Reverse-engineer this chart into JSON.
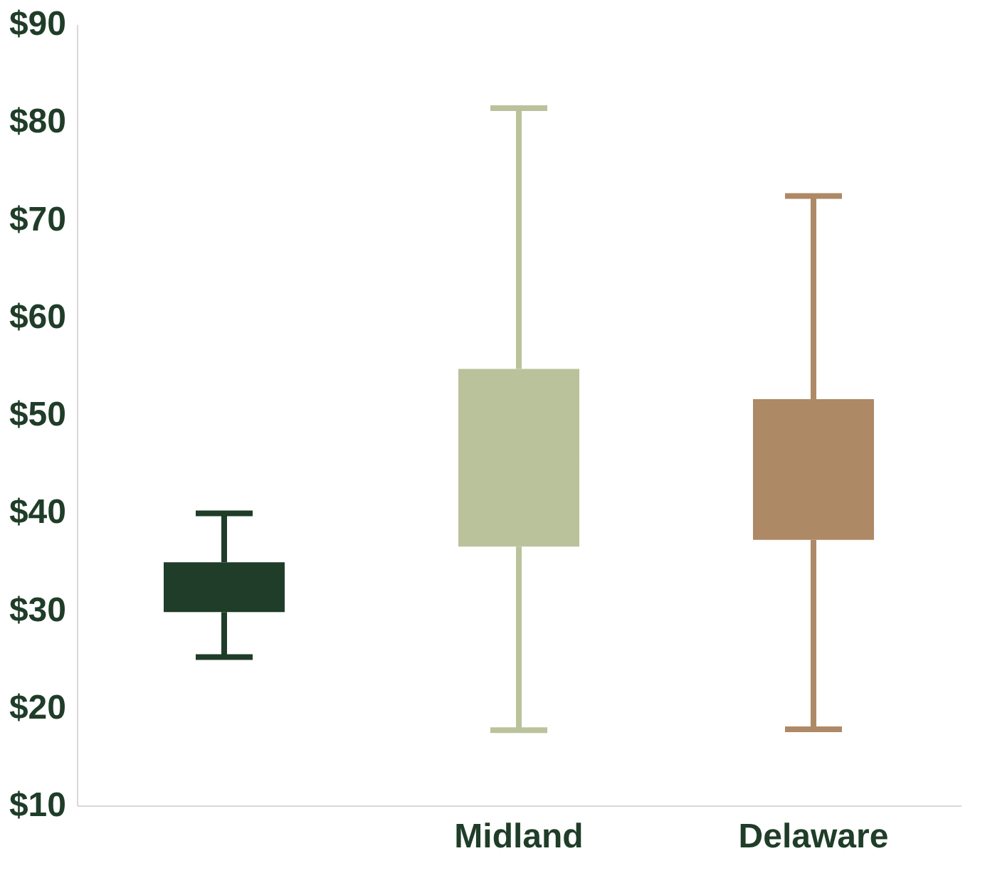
{
  "chart_data": {
    "type": "box",
    "categories": [
      null,
      "Midland",
      "Delaware"
    ],
    "colors": [
      "#1f3d28",
      "#bac29c",
      "#ae8966"
    ],
    "boxes": [
      {
        "low": 25.2,
        "q1": 29.8,
        "median": 32,
        "q3": 34.9,
        "high": 39.9
      },
      {
        "low": 17.7,
        "q1": 36.5,
        "median": 45,
        "q3": 54.7,
        "high": 81.4
      },
      {
        "low": 17.8,
        "q1": 37.2,
        "median": 44,
        "q3": 51.6,
        "high": 72.4
      }
    ],
    "ylim": [
      10,
      90
    ],
    "yticks": [
      {
        "value": 10,
        "label": "$10"
      },
      {
        "value": 20,
        "label": "$20"
      },
      {
        "value": 30,
        "label": "$30"
      },
      {
        "value": 40,
        "label": "$40"
      },
      {
        "value": 50,
        "label": "$50"
      },
      {
        "value": 60,
        "label": "$60"
      },
      {
        "value": 70,
        "label": "$70"
      },
      {
        "value": 80,
        "label": "$80"
      },
      {
        "value": 90,
        "label": "$90"
      }
    ],
    "grid": false
  }
}
